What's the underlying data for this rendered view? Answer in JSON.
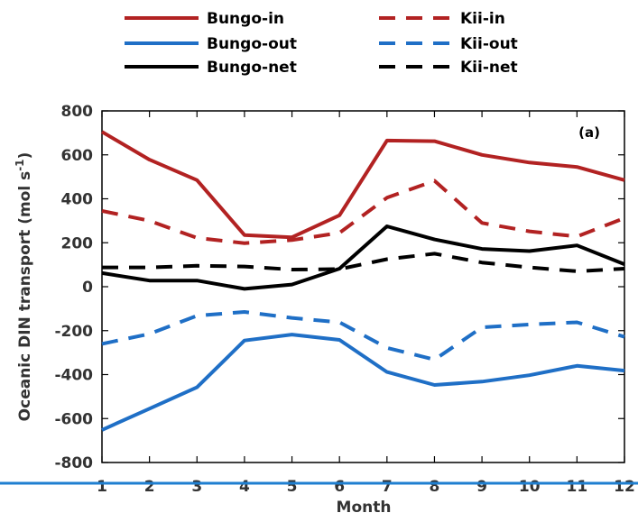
{
  "chart_data": {
    "type": "line",
    "panel_label": "(a)",
    "xlabel": "Month",
    "ylabel": "Oceanic DIN transport (mol s",
    "ylabel_sup": "-1",
    "ylabel_tail": ")",
    "x": [
      1,
      2,
      3,
      4,
      5,
      6,
      7,
      8,
      9,
      10,
      11,
      12
    ],
    "xticks": [
      "1",
      "2",
      "3",
      "4",
      "5",
      "6",
      "7",
      "8",
      "9",
      "10",
      "11",
      "12"
    ],
    "xlim": [
      1,
      12
    ],
    "ylim": [
      -800,
      800
    ],
    "yticks": [
      "800",
      "600",
      "400",
      "200",
      "0",
      "-200",
      "-400",
      "-600",
      "-800"
    ],
    "ytick_values": [
      800,
      600,
      400,
      200,
      0,
      -200,
      -400,
      -600,
      -800
    ],
    "grid": false,
    "legend_position": "top",
    "series": [
      {
        "name": "Bungo-in",
        "color": "#b22222",
        "dash": "solid",
        "values": [
          705,
          578,
          485,
          235,
          225,
          325,
          665,
          662,
          600,
          565,
          545,
          485
        ]
      },
      {
        "name": "Bungo-out",
        "color": "#1f6fc6",
        "dash": "solid",
        "values": [
          -652,
          -555,
          -458,
          -245,
          -218,
          -242,
          -388,
          -447,
          -432,
          -403,
          -360,
          -382
        ]
      },
      {
        "name": "Bungo-net",
        "color": "#000000",
        "dash": "solid",
        "values": [
          62,
          28,
          28,
          -10,
          10,
          82,
          275,
          215,
          172,
          162,
          188,
          102
        ]
      },
      {
        "name": "Kii-in",
        "color": "#b22222",
        "dash": "dashed",
        "values": [
          345,
          300,
          222,
          198,
          212,
          245,
          405,
          482,
          290,
          252,
          228,
          312
        ]
      },
      {
        "name": "Kii-out",
        "color": "#1f6fc6",
        "dash": "dashed",
        "values": [
          -260,
          -215,
          -132,
          -115,
          -142,
          -162,
          -278,
          -332,
          -185,
          -172,
          -162,
          -228
        ]
      },
      {
        "name": "Kii-net",
        "color": "#000000",
        "dash": "dashed",
        "values": [
          88,
          88,
          95,
          92,
          78,
          80,
          125,
          150,
          110,
          88,
          70,
          82
        ]
      }
    ]
  },
  "colors": {
    "decor_line": "#1f7fd0"
  }
}
